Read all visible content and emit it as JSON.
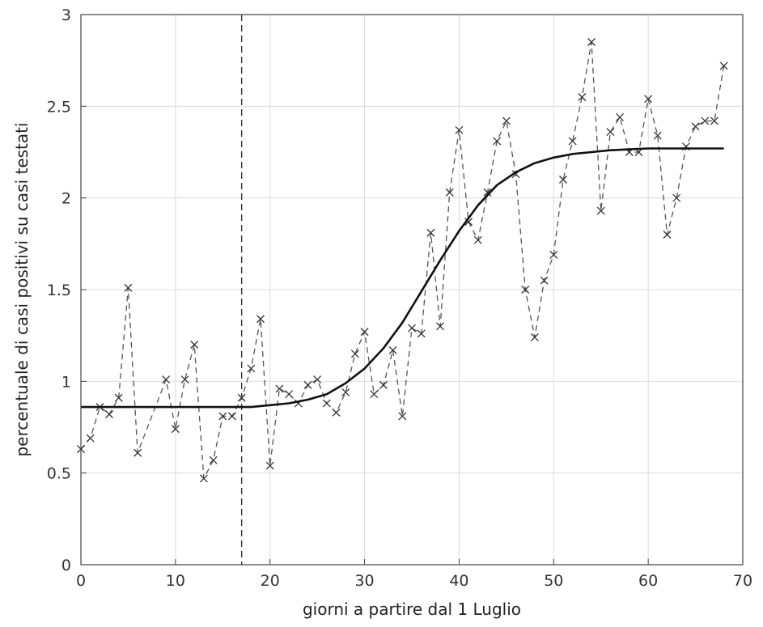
{
  "chart_data": {
    "type": "line",
    "title": "",
    "xlabel": "giorni a partire dal 1 Luglio",
    "ylabel": "percentuale di casi positivi su casi testati",
    "xlim": [
      0,
      70
    ],
    "ylim": [
      0,
      3
    ],
    "x_ticks": [
      "0",
      "10",
      "20",
      "30",
      "40",
      "50",
      "60",
      "70"
    ],
    "y_ticks": [
      "0",
      "0.5",
      "1",
      "1.5",
      "2",
      "2.5",
      "3"
    ],
    "grid": true,
    "legend": "none",
    "vertical_marker": {
      "x": 17,
      "style": "dashed"
    },
    "series": [
      {
        "style": "dashed line with x markers",
        "color": "#555555",
        "x": [
          0,
          1,
          2,
          3,
          4,
          5,
          6,
          9,
          10,
          11,
          12,
          13,
          14,
          15,
          16,
          17,
          18,
          19,
          20,
          21,
          22,
          23,
          24,
          25,
          26,
          27,
          28,
          29,
          30,
          31,
          32,
          33,
          34,
          35,
          36,
          37,
          38,
          39,
          40,
          41,
          42,
          43,
          44,
          45,
          46,
          47,
          48,
          49,
          50,
          51,
          52,
          53,
          54,
          55,
          56,
          57,
          58,
          59,
          60,
          61,
          62,
          63,
          64,
          65,
          66,
          67,
          68
        ],
        "y": [
          0.63,
          0.69,
          0.86,
          0.82,
          0.91,
          1.51,
          0.61,
          1.01,
          0.74,
          1.01,
          1.2,
          0.47,
          0.57,
          0.81,
          0.81,
          0.91,
          1.07,
          1.34,
          0.54,
          0.96,
          0.93,
          0.88,
          0.98,
          1.01,
          0.88,
          0.83,
          0.94,
          1.15,
          1.27,
          0.93,
          0.98,
          1.17,
          0.81,
          1.29,
          1.26,
          1.81,
          1.3,
          2.03,
          2.37,
          1.87,
          1.77,
          2.03,
          2.31,
          2.42,
          2.13,
          1.5,
          1.24,
          1.55,
          1.69,
          2.1,
          2.31,
          2.55,
          2.85,
          1.93,
          2.36,
          2.44,
          2.25,
          2.25,
          2.54,
          2.34,
          1.8,
          2.0,
          2.28,
          2.39,
          2.42,
          2.42,
          2.72
        ]
      },
      {
        "style": "solid line",
        "color": "#111111",
        "x": [
          0,
          4,
          8,
          12,
          16,
          18,
          20,
          22,
          24,
          26,
          28,
          30,
          32,
          34,
          36,
          38,
          40,
          42,
          44,
          46,
          48,
          50,
          52,
          54,
          56,
          58,
          60,
          64,
          68
        ],
        "y": [
          0.86,
          0.86,
          0.86,
          0.86,
          0.86,
          0.86,
          0.87,
          0.88,
          0.9,
          0.93,
          0.99,
          1.07,
          1.18,
          1.32,
          1.49,
          1.66,
          1.82,
          1.96,
          2.07,
          2.14,
          2.19,
          2.22,
          2.24,
          2.25,
          2.26,
          2.265,
          2.27,
          2.27,
          2.27
        ]
      }
    ]
  }
}
